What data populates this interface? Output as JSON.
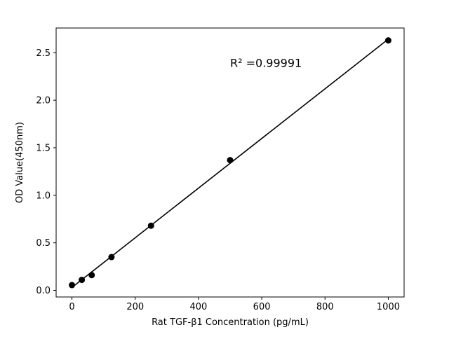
{
  "chart_data": {
    "type": "scatter",
    "title": "",
    "xlabel": "Rat TGF-β1 Concentration (pg/mL)",
    "ylabel": "OD Value(450nm)",
    "x": [
      0,
      31.25,
      62.5,
      125,
      250,
      500,
      1000
    ],
    "y": [
      0.055,
      0.11,
      0.16,
      0.35,
      0.68,
      1.37,
      2.63
    ],
    "fit": "linear",
    "annotation": {
      "text": "R² =0.99991",
      "x": 500,
      "y": 2.35
    },
    "xlim": [
      -50,
      1050
    ],
    "ylim": [
      -0.07,
      2.76
    ],
    "xticks": [
      0,
      200,
      400,
      600,
      800,
      1000
    ],
    "xtick_labels": [
      "0",
      "200",
      "400",
      "600",
      "800",
      "1000"
    ],
    "yticks": [
      0.0,
      0.5,
      1.0,
      1.5,
      2.0,
      2.5
    ],
    "ytick_labels": [
      "0.0",
      "0.5",
      "1.0",
      "1.5",
      "2.0",
      "2.5"
    ],
    "legend": "none",
    "grid": false,
    "marker_color": "#000000",
    "line_color": "#000000",
    "background": "#ffffff"
  }
}
